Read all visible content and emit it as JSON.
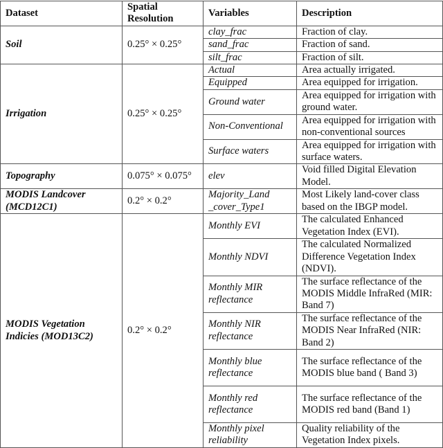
{
  "headers": [
    "Dataset",
    "Spatial Resolution",
    "Variables",
    "Description"
  ],
  "groups": [
    {
      "dataset": "Soil",
      "resolution": "0.25° × 0.25°",
      "rows": [
        {
          "variable": "clay_frac",
          "description": "Fraction of clay."
        },
        {
          "variable": "sand_frac",
          "description": "Fraction of sand."
        },
        {
          "variable": "silt_frac",
          "description": "Fraction of silt."
        }
      ]
    },
    {
      "dataset": "Irrigation",
      "resolution": "0.25° × 0.25°",
      "rows": [
        {
          "variable": "Actual",
          "description": "Area actually irrigated."
        },
        {
          "variable": "Equipped",
          "description": "Area equipped for irrigation."
        },
        {
          "variable": "Ground water",
          "description": "Area equipped for irrigation with ground water."
        },
        {
          "variable": "Non-Conventional",
          "description": "Area equipped for irrigation with non-conventional sources"
        },
        {
          "variable": "Surface waters",
          "description": "Area equipped for irrigation with surface waters."
        }
      ]
    },
    {
      "dataset": "Topography",
      "resolution": "0.075° × 0.075°",
      "rows": [
        {
          "variable": "elev",
          "description": "Void filled Digital Elevation Model."
        }
      ]
    },
    {
      "dataset": "MODIS Landcover (MCD12C1)",
      "resolution": "0.2° × 0.2°",
      "rows": [
        {
          "variable": "Majority_Land _cover_Type1",
          "description": "Most Likely land-cover class based on the IBGP model."
        }
      ]
    },
    {
      "dataset": "MODIS Vegetation Indicies (MOD13C2)",
      "resolution": "0.2° × 0.2°",
      "rows": [
        {
          "variable": "Monthly EVI",
          "description": "The calculated Enhanced Vegetation Index (EVI)."
        },
        {
          "variable": "Monthly NDVI",
          "description": "The calculated Normalized Difference Vegetation Index (NDVI)."
        },
        {
          "variable": "Monthly MIR reflectance",
          "description": "The surface reflectance of the MODIS Middle InfraRed (MIR: Band 7)"
        },
        {
          "variable": "Monthly NIR reflectance",
          "description": "The surface reflectance of the MODIS Near InfraRed (NIR: Band 2)"
        },
        {
          "variable": "Monthly blue reflectance",
          "description": "The surface reflectance of the MODIS blue band ( Band 3)"
        },
        {
          "variable": "Monthly red reflectance",
          "description": "The surface reflectance of the MODIS red band (Band 1)"
        },
        {
          "variable": "Monthly pixel reliability",
          "description": "Quality reliability of the Vegetation Index pixels."
        }
      ]
    }
  ]
}
